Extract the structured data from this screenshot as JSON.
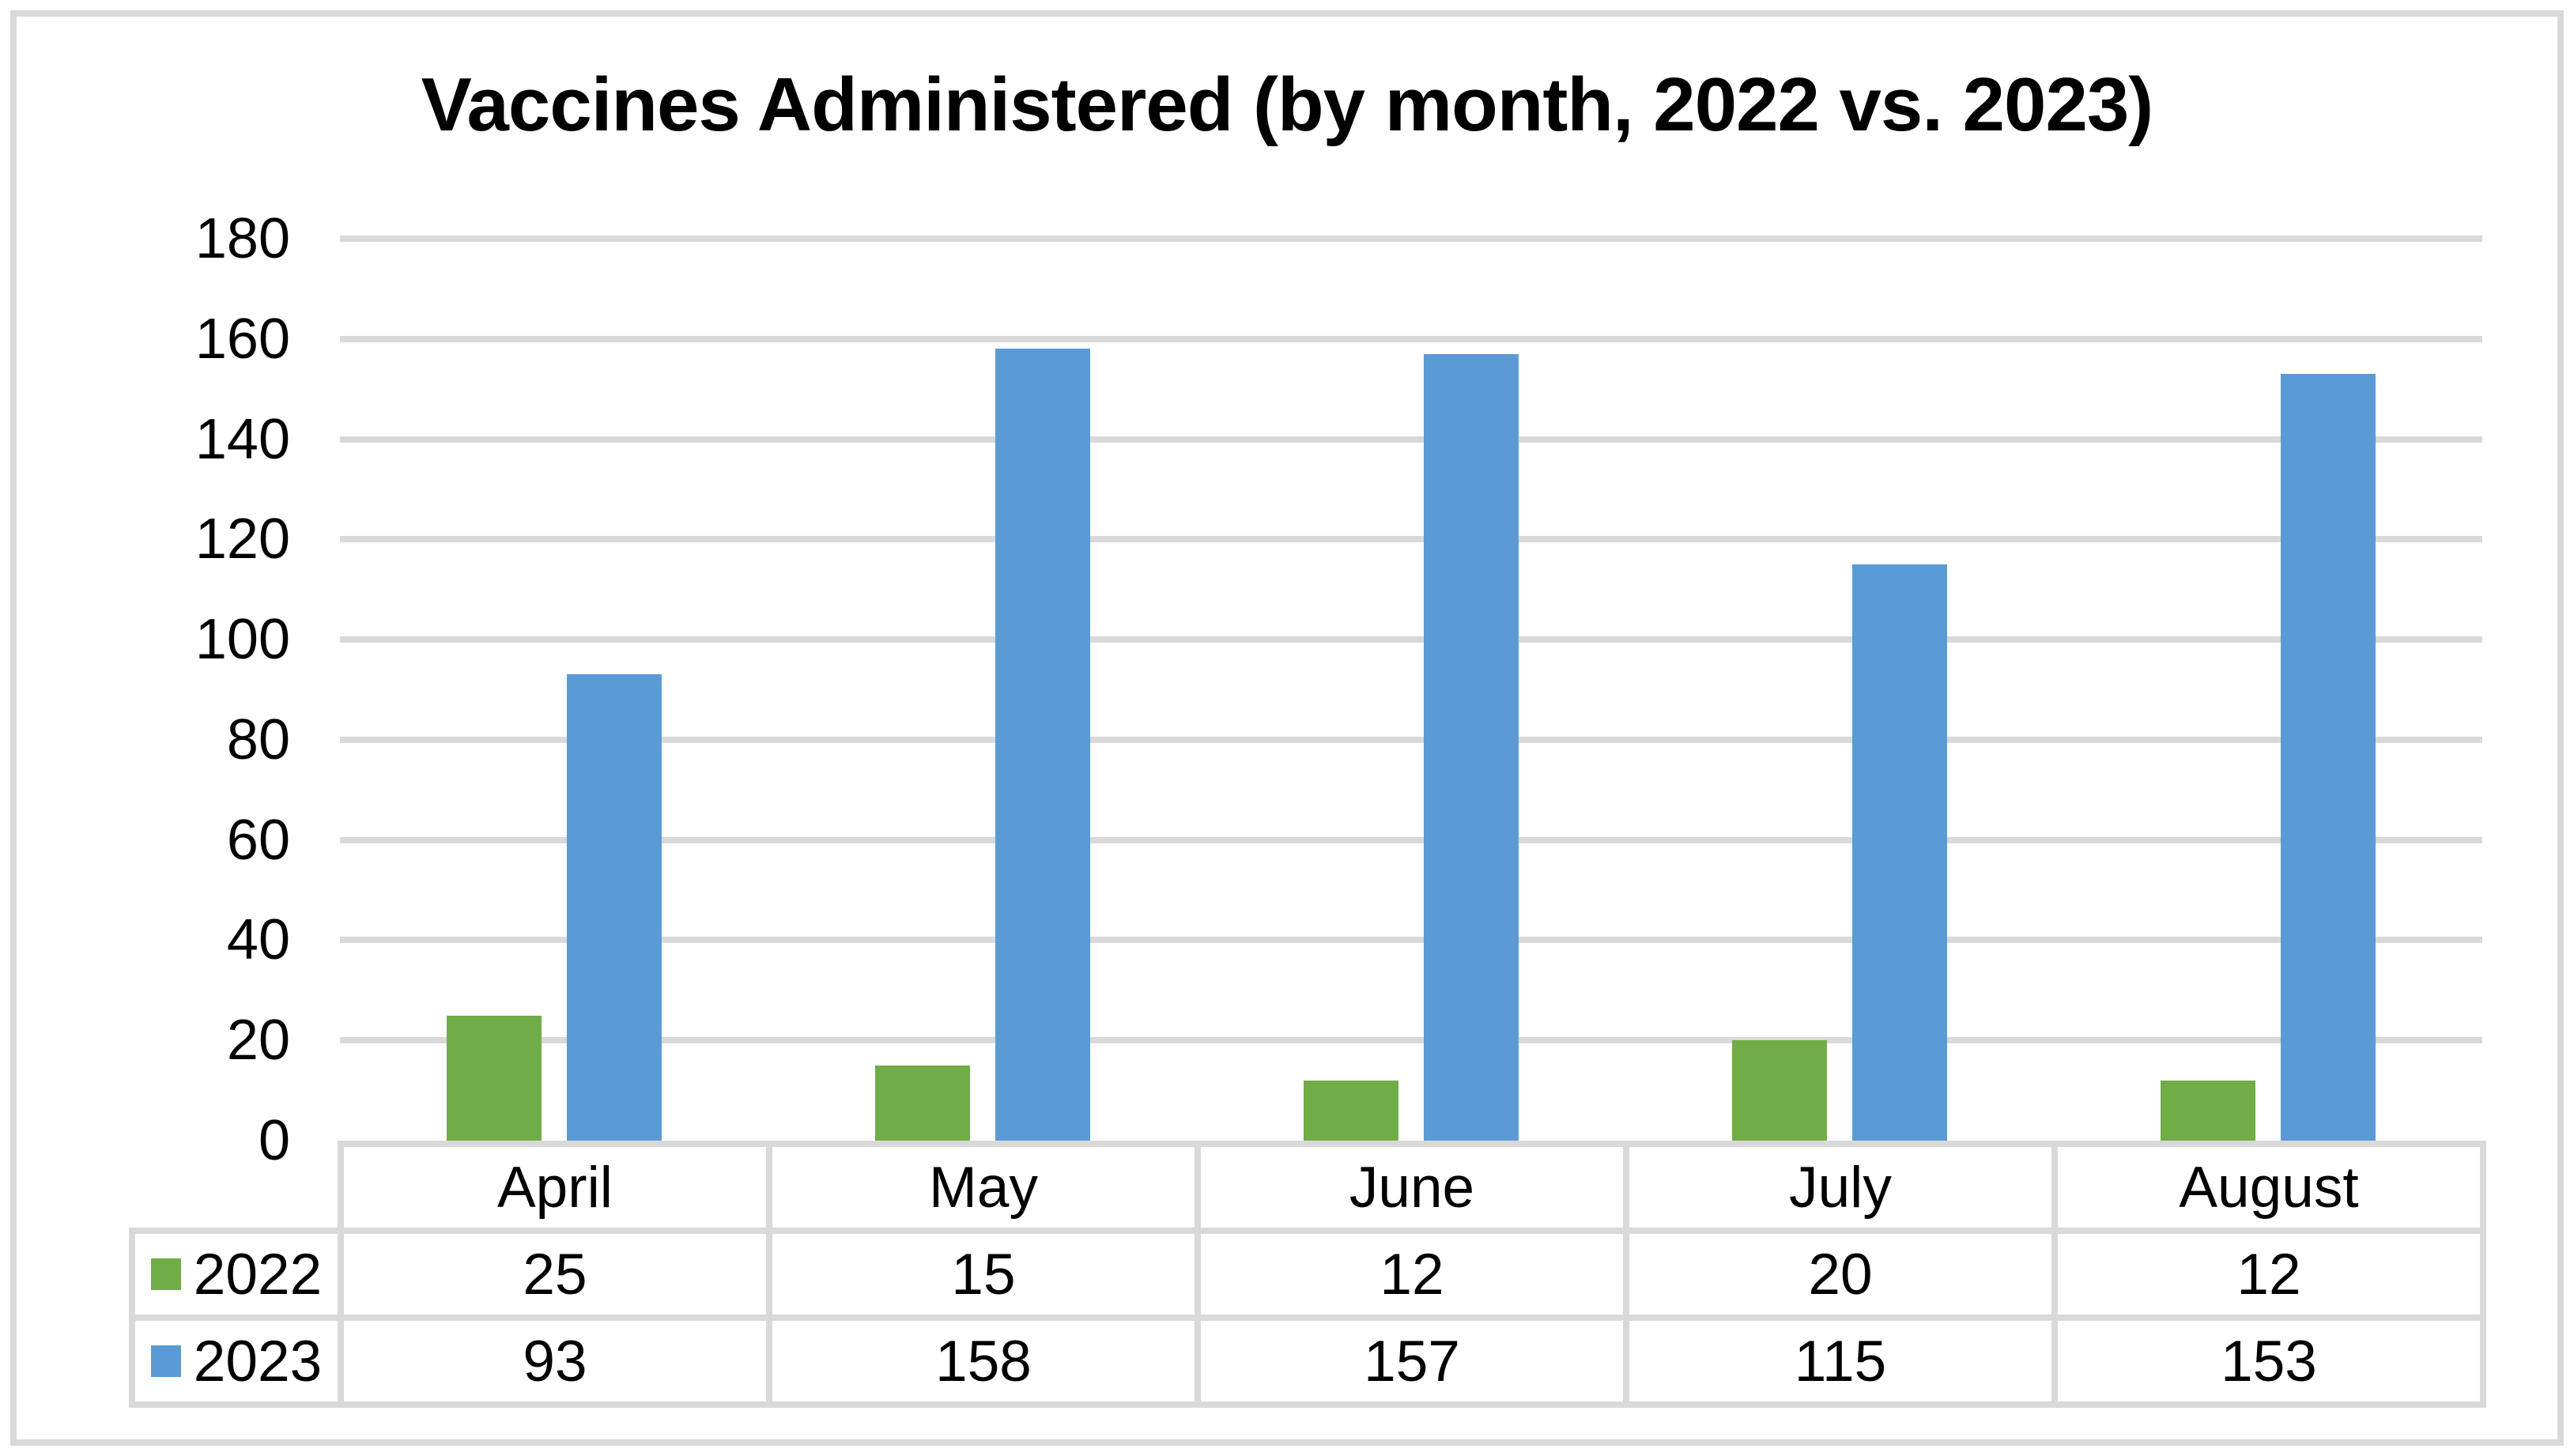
{
  "page": {
    "background": "#ffffff",
    "frame_color": "#d9d9d9"
  },
  "chart_data": {
    "type": "bar",
    "title": "Vaccines Administered (by month, 2022 vs. 2023)",
    "categories": [
      "April",
      "May",
      "June",
      "July",
      "August"
    ],
    "series": [
      {
        "name": "2022",
        "color": "#70ad47",
        "values": [
          25,
          15,
          12,
          20,
          12
        ]
      },
      {
        "name": "2023",
        "color": "#5b9bd5",
        "values": [
          93,
          158,
          157,
          115,
          153
        ]
      }
    ],
    "y_axis": {
      "min": 0,
      "max": 180,
      "step": 20,
      "tick_labels": [
        "180",
        "160",
        "140",
        "120",
        "100",
        "80",
        "60",
        "40",
        "20",
        "0"
      ]
    },
    "grid": true,
    "gridline_color": "#d9d9d9",
    "legend_position": "left-of-data-table",
    "data_table_shown": true
  }
}
